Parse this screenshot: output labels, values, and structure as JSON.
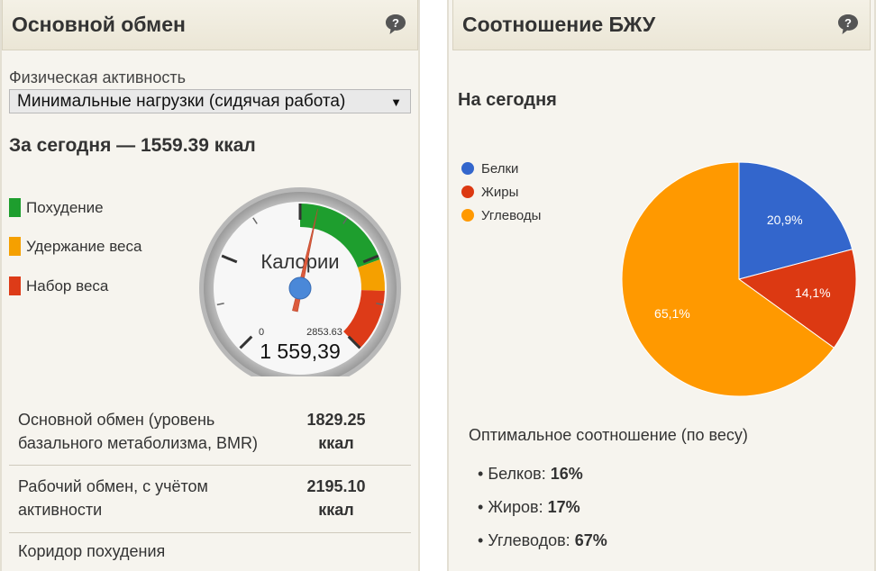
{
  "left_panel": {
    "title": "Основной обмен",
    "activity": {
      "label": "Физическая активность",
      "selected": "Минимальные нагрузки (сидячая работа)"
    },
    "today_summary": "За сегодня — 1559.39 ккал",
    "legend": [
      {
        "label": "Похудение",
        "color": "#1e9e2e"
      },
      {
        "label": "Удержание веса",
        "color": "#f5a000"
      },
      {
        "label": "Набор веса",
        "color": "#dd3b18"
      }
    ],
    "gauge": {
      "title": "Калории",
      "value": 1559.39,
      "value_text": "1 559,39",
      "min_label": "0",
      "max_label": "2853.63",
      "min": 0,
      "max": 2853.63,
      "bands": [
        {
          "from": 0.5,
          "to": 0.76,
          "color": "#1e9e2e"
        },
        {
          "from": 0.76,
          "to": 0.84,
          "color": "#f5a000"
        },
        {
          "from": 0.84,
          "to": 1.0,
          "color": "#dd3b18"
        }
      ]
    },
    "info_rows": [
      {
        "label": "Основной обмен (уровень базального метаболизма, BMR)",
        "value": "1829.25 ккал"
      },
      {
        "label": "Рабочий обмен, с учётом активности",
        "value": "2195.10 ккал"
      },
      {
        "label": "Коридор похудения",
        "value": ""
      }
    ]
  },
  "right_panel": {
    "title": "Соотношение БЖУ",
    "subtitle": "На сегодня",
    "legend": [
      {
        "label": "Белки",
        "color": "#3366cc"
      },
      {
        "label": "Жиры",
        "color": "#dc3912"
      },
      {
        "label": "Углеводы",
        "color": "#ff9900"
      }
    ],
    "optimal_title": "Оптимальное соотношение (по весу)",
    "optimal": [
      {
        "label": "Белков: ",
        "value": "16%"
      },
      {
        "label": "Жиров: ",
        "value": "17%"
      },
      {
        "label": "Углеводов: ",
        "value": "67%"
      }
    ]
  },
  "chart_data": {
    "type": "pie",
    "categories": [
      "Белки",
      "Жиры",
      "Углеводы"
    ],
    "values": [
      20.9,
      14.1,
      65.1
    ],
    "labels": [
      "20,9%",
      "14,1%",
      "65,1%"
    ],
    "colors": [
      "#3366cc",
      "#dc3912",
      "#ff9900"
    ],
    "legend_position": "left"
  }
}
